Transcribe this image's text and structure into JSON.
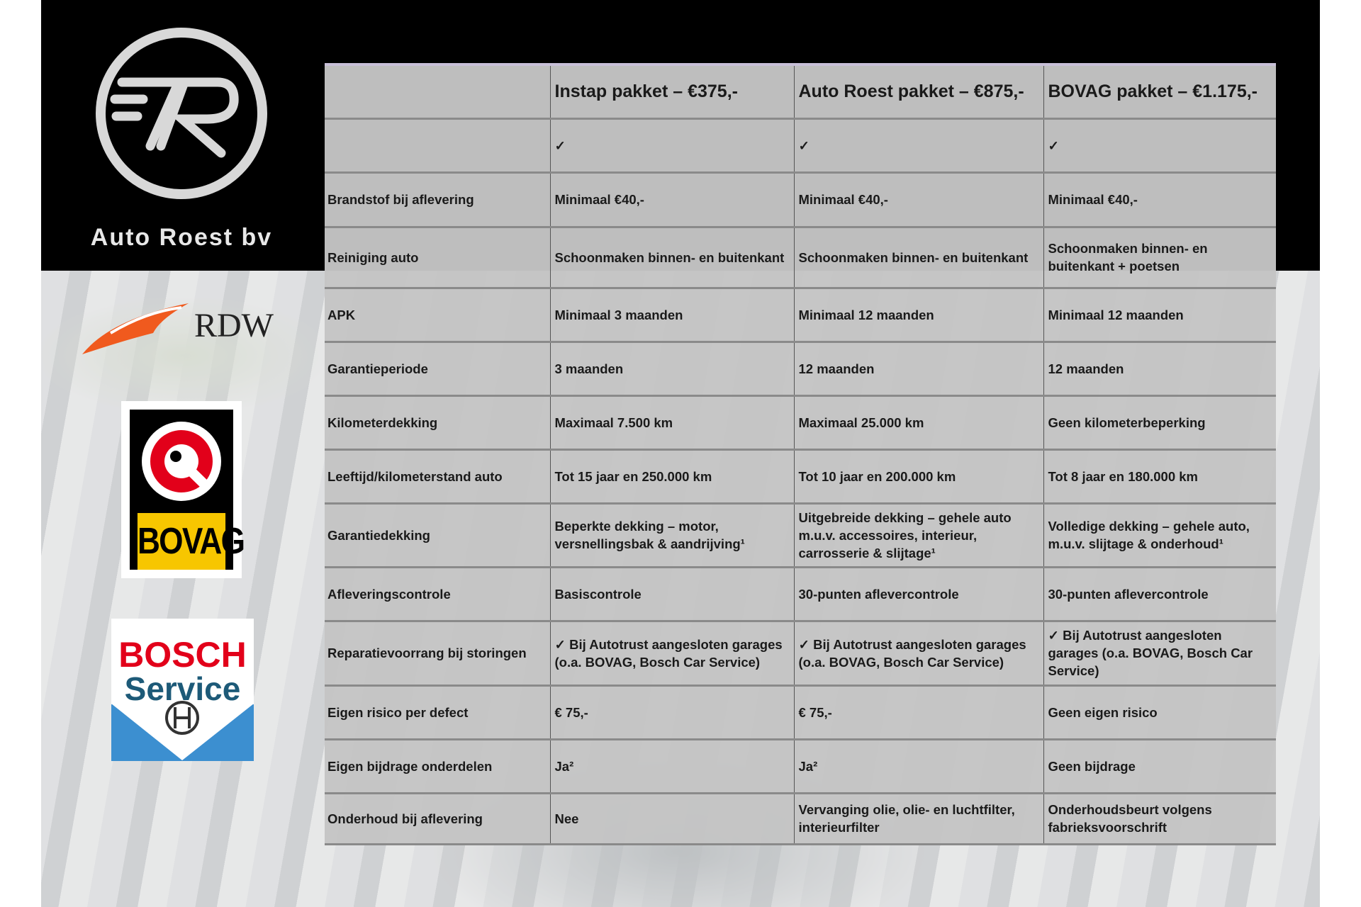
{
  "brand": {
    "name": "Auto Roest bv"
  },
  "logos": {
    "rdw": "RDW",
    "bovag": "BOVAG",
    "bosch_line1": "BOSCH",
    "bosch_line2": "Service"
  },
  "colors": {
    "rdw_orange": "#f05a1e",
    "bovag_yellow": "#f7c600",
    "bovag_red": "#e2001a",
    "bosch_red": "#e2001a",
    "bosch_blue": "#3c8fd0"
  },
  "table": {
    "headers": [
      "",
      "Instap pakket – €375,-",
      "Auto Roest pakket – €875,-",
      "BOVAG pakket – €1.175,-"
    ],
    "rows": [
      [
        "",
        "✓",
        "✓",
        "✓"
      ],
      [
        "Brandstof bij aflevering",
        "Minimaal €40,-",
        "Minimaal €40,-",
        "Minimaal €40,-"
      ],
      [
        "Reiniging auto",
        "Schoonmaken binnen- en buitenkant",
        "Schoonmaken binnen- en buitenkant",
        "Schoonmaken binnen- en buitenkant + poetsen"
      ],
      [
        "APK",
        "Minimaal 3 maanden",
        "Minimaal 12 maanden",
        "Minimaal 12 maanden"
      ],
      [
        "Garantieperiode",
        "3 maanden",
        "12 maanden",
        "12 maanden"
      ],
      [
        "Kilometerdekking",
        "Maximaal 7.500 km",
        "Maximaal 25.000 km",
        "Geen kilometerbeperking"
      ],
      [
        "Leeftijd/kilometerstand auto",
        "Tot 15 jaar en 250.000 km",
        "Tot 10 jaar en 200.000 km",
        "Tot 8 jaar en 180.000 km"
      ],
      [
        "Garantiedekking",
        "Beperkte dekking – motor, versnellingsbak & aandrijving¹",
        "Uitgebreide dekking – gehele auto m.u.v. accessoires, interieur, carrosserie & slijtage¹",
        "Volledige dekking – gehele auto, m.u.v. slijtage & onderhoud¹"
      ],
      [
        "Afleveringscontrole",
        "Basiscontrole",
        "30-punten aflevercontrole",
        "30-punten aflevercontrole"
      ],
      [
        "Reparatievoorrang bij storingen",
        "✓ Bij Autotrust aangesloten garages (o.a. BOVAG, Bosch Car Service)",
        "✓ Bij Autotrust aangesloten garages (o.a. BOVAG, Bosch Car Service)",
        "✓ Bij Autotrust aangesloten garages (o.a. BOVAG, Bosch Car Service)"
      ],
      [
        "Eigen risico per defect",
        "€ 75,-",
        "€ 75,-",
        "Geen eigen risico"
      ],
      [
        "Eigen bijdrage onderdelen",
        "Ja²",
        "Ja²",
        "Geen bijdrage"
      ],
      [
        "Onderhoud bij aflevering",
        "Nee",
        "Vervanging olie, olie- en luchtfilter, interieurfilter",
        "Onderhoudsbeurt volgens fabrieksvoorschrift"
      ]
    ]
  }
}
